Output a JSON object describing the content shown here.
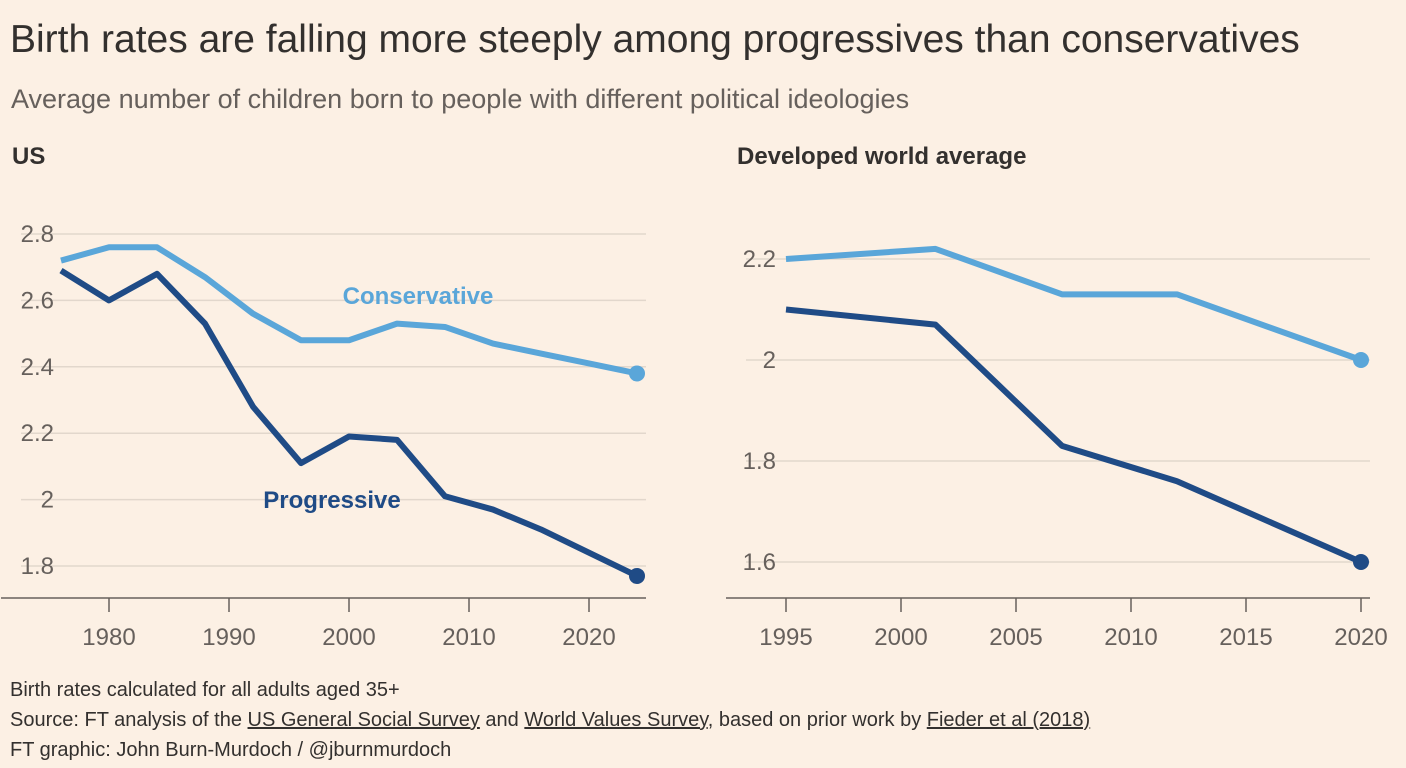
{
  "header": {
    "title": "Birth rates are falling more steeply among progressives than conservatives",
    "subtitle": "Average number of children born to people with different political ideologies"
  },
  "colors": {
    "background": "#fcf0e4",
    "conservative": "#5aa6d9",
    "progressive": "#1f4b86",
    "grid": "#e2d7cc",
    "axis": "#66605c"
  },
  "chart_data": [
    {
      "type": "line",
      "title": "US",
      "xlim": [
        1976,
        2024
      ],
      "ylim": [
        1.8,
        2.8
      ],
      "xticks": [
        "1980",
        "1990",
        "2000",
        "2010",
        "2020"
      ],
      "yticks": [
        "1.8",
        "2",
        "2.2",
        "2.4",
        "2.6",
        "2.8"
      ],
      "grid": true,
      "series": [
        {
          "name": "Conservative",
          "x": [
            1976,
            1980,
            1984,
            1988,
            1992,
            1996,
            2000,
            2004,
            2008,
            2012,
            2016,
            2020,
            2024
          ],
          "y": [
            2.72,
            2.76,
            2.76,
            2.67,
            2.56,
            2.48,
            2.48,
            2.53,
            2.52,
            2.47,
            2.44,
            2.41,
            2.38
          ]
        },
        {
          "name": "Progressive",
          "x": [
            1976,
            1980,
            1984,
            1988,
            1992,
            1996,
            2000,
            2004,
            2008,
            2012,
            2016,
            2020,
            2024
          ],
          "y": [
            2.69,
            2.6,
            2.68,
            2.53,
            2.28,
            2.11,
            2.19,
            2.18,
            2.01,
            1.97,
            1.91,
            1.84,
            1.77
          ]
        }
      ]
    },
    {
      "type": "line",
      "title": "Developed world average",
      "xlim": [
        1995,
        2020
      ],
      "ylim": [
        1.6,
        2.2
      ],
      "xticks": [
        "1995",
        "2000",
        "2005",
        "2010",
        "2015",
        "2020"
      ],
      "yticks": [
        "1.6",
        "1.8",
        "2",
        "2.2"
      ],
      "grid": true,
      "series": [
        {
          "name": "Conservative",
          "x": [
            1995,
            2001.5,
            2007,
            2012,
            2020
          ],
          "y": [
            2.2,
            2.22,
            2.13,
            2.13,
            2.0
          ]
        },
        {
          "name": "Progressive",
          "x": [
            1995,
            2001.5,
            2007,
            2012,
            2020
          ],
          "y": [
            2.1,
            2.07,
            1.83,
            1.76,
            1.6
          ]
        }
      ]
    }
  ],
  "footer": {
    "note": "Birth rates calculated for all adults aged 35+",
    "source_prefix": "Source: FT analysis of the ",
    "source_link1": "US General Social Survey",
    "source_mid1": " and ",
    "source_link2": "World Values Survey",
    "source_mid2": ", based on prior work by ",
    "source_link3": "Fieder et al (2018)",
    "credit": "FT graphic: John Burn-Murdoch / @jburnmurdoch"
  }
}
